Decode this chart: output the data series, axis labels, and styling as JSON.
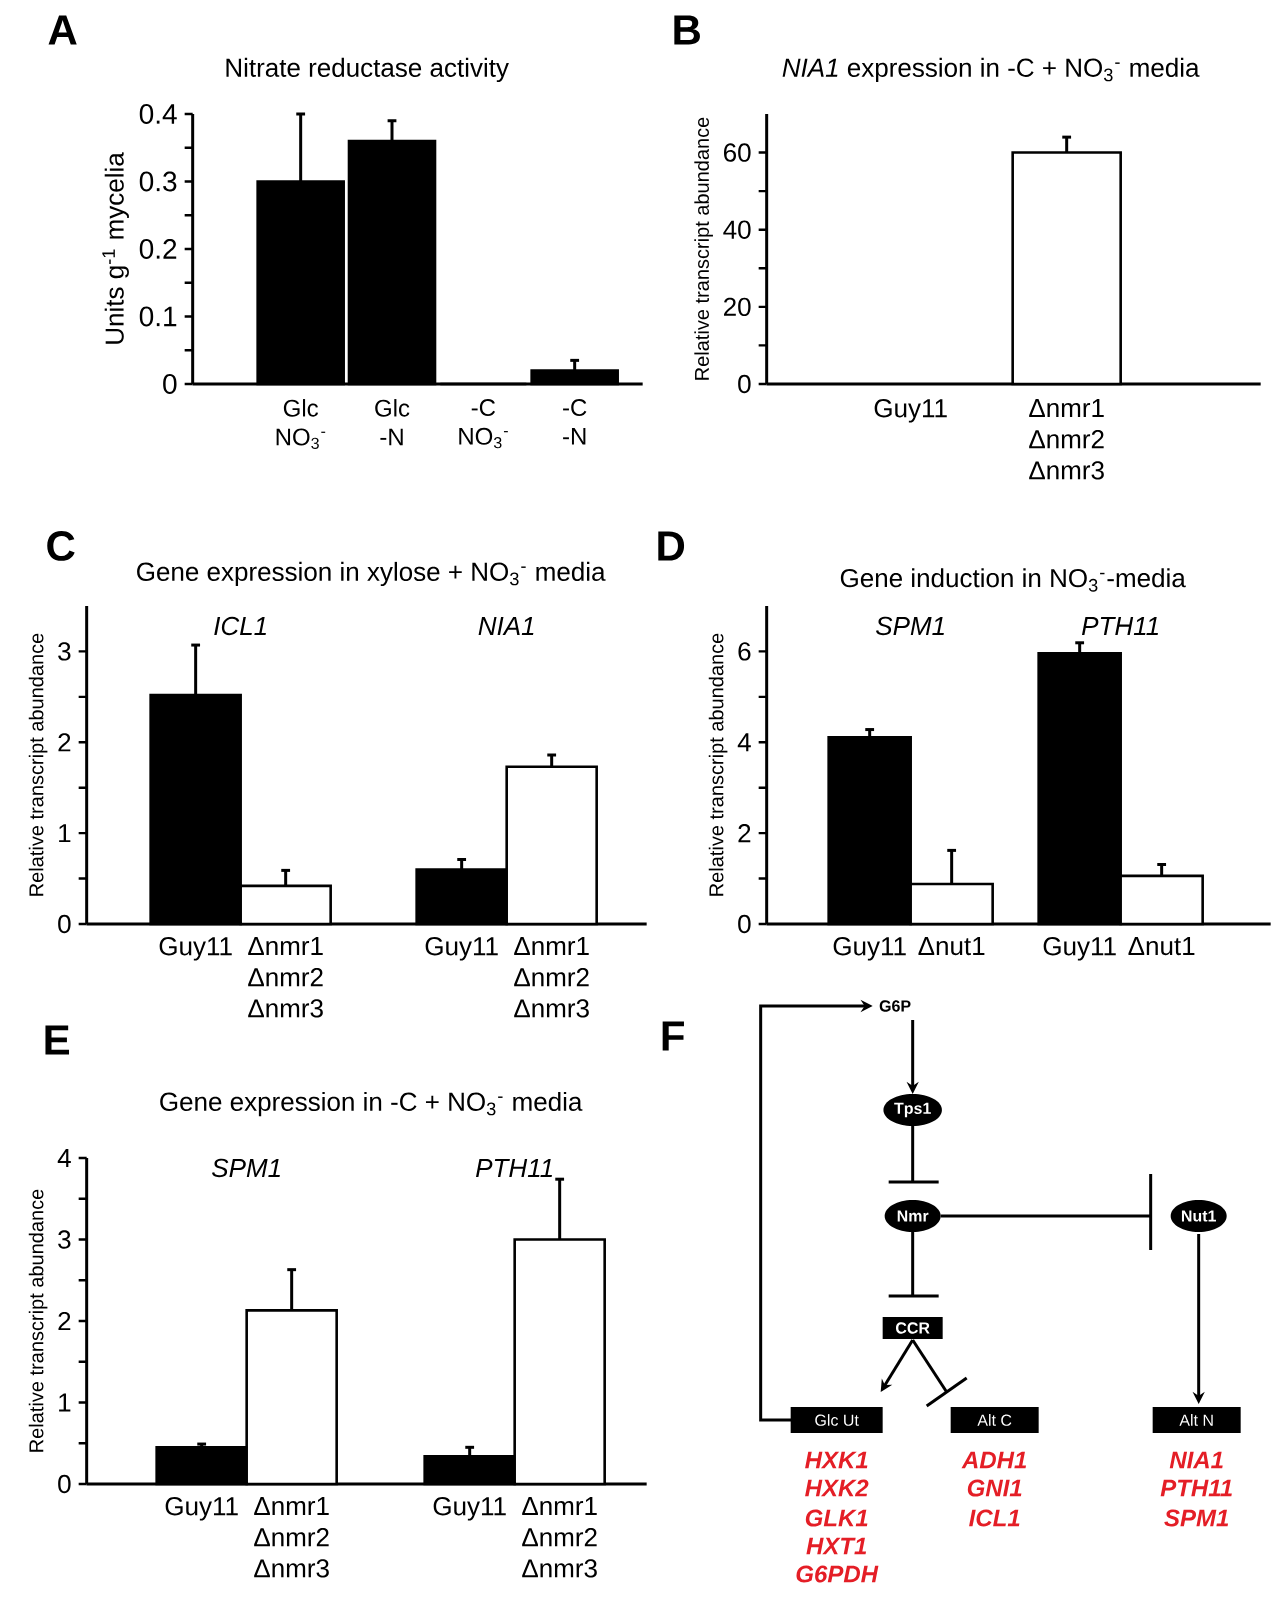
{
  "chart_data": [
    {
      "type": "bar",
      "title": "Nitrate reductase activity",
      "ylabel": "Units g$^{-1}$ mycelia",
      "annotations": [
        "A"
      ],
      "categories": [
        "Glc NO$_{3}$$^{-}$",
        "Glc -N",
        "-C NO$_{3}$$^{-}$",
        "-C -N"
      ],
      "values": [
        0.3,
        0.36,
        0,
        0.02
      ],
      "errors": [
        0.1,
        0.03,
        null,
        0.015
      ],
      "color": "#000000",
      "ylim": [
        0,
        0.4
      ],
      "yticks": [
        0,
        {
          "value": 0.05,
          "label": null
        },
        0.1,
        {
          "value": 0.15,
          "label": null
        },
        0.2,
        {
          "value": 0.25,
          "label": null
        },
        0.3,
        {
          "value": 0.35,
          "label": null
        },
        0.4
      ]
    },
    {
      "type": "bar",
      "title": "*NIA1* expression in -C + NO$_{3}$$^{-}$ media",
      "ylabel": "Relative transcript abundance",
      "annotations": [
        "B"
      ],
      "categories": [
        "Guy11",
        "Δnmr1 Δnmr2 Δnmr3"
      ],
      "values": [
        null,
        60
      ],
      "errors": [
        null,
        4
      ],
      "color": "#ffffff",
      "ylim": [
        0,
        70
      ],
      "yticks": [
        0,
        {
          "value": 10,
          "label": null
        },
        20,
        {
          "value": 30,
          "label": null
        },
        40,
        {
          "value": 50,
          "label": null
        },
        60
      ]
    },
    {
      "type": "bar",
      "title": "Gene expression in xylose + NO$_{3}$$^{-}$ media",
      "ylabel": "Relative transcript abundance",
      "annotations": [
        "C"
      ],
      "categories": [
        "ICL1",
        "NIA1"
      ],
      "series": [
        {
          "name": "Guy11",
          "color": "#000000",
          "values": [
            2.52,
            0.6
          ],
          "errors": [
            0.55,
            0.11
          ]
        },
        {
          "name": "Δnmr1 Δnmr2 Δnmr3",
          "color": "#ffffff",
          "values": [
            0.42,
            1.73
          ],
          "errors": [
            0.17,
            0.13
          ]
        }
      ],
      "ylim": [
        0,
        3.5
      ],
      "yticks": [
        0,
        {
          "value": 0.5,
          "label": null
        },
        1,
        {
          "value": 1.5,
          "label": null
        },
        2,
        {
          "value": 2.5,
          "label": null
        },
        3
      ]
    },
    {
      "type": "bar",
      "title": "Gene induction in NO$_{3}$$^{-}$-media",
      "ylabel": "Relative transcript abundance",
      "annotations": [
        "D"
      ],
      "categories": [
        "SPM1",
        "PTH11"
      ],
      "series": [
        {
          "name": "Guy11",
          "color": "#000000",
          "values": [
            4.11,
            5.96
          ],
          "errors": [
            0.17,
            0.23
          ]
        },
        {
          "name": "Δnut1",
          "color": "#ffffff",
          "values": [
            0.88,
            1.06
          ],
          "errors": [
            0.74,
            0.25
          ]
        }
      ],
      "ylim": [
        0,
        7
      ],
      "yticks": [
        0,
        {
          "value": 1,
          "label": null
        },
        2,
        {
          "value": 3,
          "label": null
        },
        4,
        {
          "value": 5,
          "label": null
        },
        6
      ]
    },
    {
      "type": "bar",
      "title": "Gene expression in -C + NO$_{3}$$^{-}$ media",
      "ylabel": "Relative transcript abundance",
      "annotations": [
        "E"
      ],
      "categories": [
        "SPM1",
        "PTH11"
      ],
      "series": [
        {
          "name": "Guy11",
          "color": "#000000",
          "values": [
            0.45,
            0.34
          ],
          "errors": [
            0.04,
            0.11
          ]
        },
        {
          "name": "Δnmr1 Δnmr2 Δnmr3",
          "color": "#ffffff",
          "values": [
            2.13,
            3.0
          ],
          "errors": [
            0.5,
            0.74
          ]
        }
      ],
      "ylim": [
        0,
        4
      ],
      "yticks": [
        0,
        {
          "value": 0.5,
          "label": null
        },
        1,
        {
          "value": 1.5,
          "label": null
        },
        2,
        {
          "value": 2.5,
          "label": null
        },
        3,
        {
          "value": 3.5,
          "label": null
        },
        4
      ]
    },
    {
      "type": "other",
      "color": "#e41e26",
      "annotations": [
        "F",
        "G6P",
        "Tps1",
        "Nmr",
        "Nut1",
        "CCR",
        "Glc Ut",
        "Alt C",
        "Alt N",
        "HXK1",
        "HXK2",
        "GLK1",
        "HXT1",
        "G6PDH",
        "ADH1",
        "GNI1",
        "ICL1",
        "NIA1",
        "PTH11",
        "SPM1"
      ]
    }
  ]
}
